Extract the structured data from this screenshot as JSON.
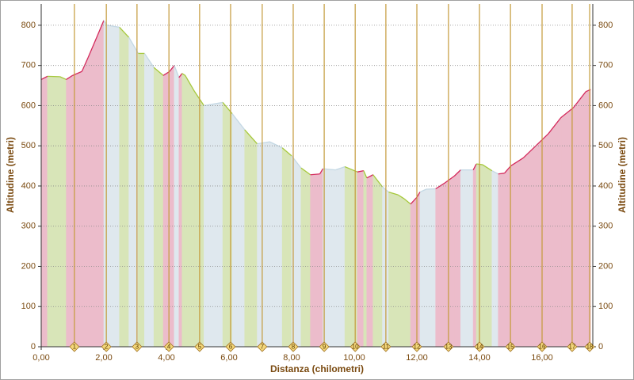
{
  "chart_data": {
    "type": "area",
    "x_label": "Distanza (chilometri)",
    "y_label": "Altitudine (metri)",
    "y2_label": "Altitudine (metri)",
    "xlim": [
      0,
      17.62
    ],
    "ylim": [
      0,
      853
    ],
    "xticks": [
      {
        "value": 0,
        "label": "0,00"
      },
      {
        "value": 2,
        "label": "2,00"
      },
      {
        "value": 4,
        "label": "4,00"
      },
      {
        "value": 6,
        "label": "6,00"
      },
      {
        "value": 8,
        "label": "8,00"
      },
      {
        "value": 10,
        "label": "10,00"
      },
      {
        "value": 12,
        "label": "12,00"
      },
      {
        "value": 14,
        "label": "14,00"
      },
      {
        "value": 16,
        "label": "16,00"
      }
    ],
    "yticks": [
      0,
      100,
      200,
      300,
      400,
      500,
      600,
      700,
      800
    ],
    "grid": true,
    "x": [
      0,
      0.2,
      0.6,
      0.8,
      1.0,
      1.3,
      1.5,
      1.8,
      2.0,
      2.1,
      2.5,
      2.8,
      3.1,
      3.3,
      3.6,
      3.9,
      4.1,
      4.25,
      4.4,
      4.5,
      4.6,
      4.9,
      5.2,
      5.8,
      6.1,
      6.5,
      6.9,
      7.3,
      7.7,
      8.0,
      8.3,
      8.6,
      8.9,
      9.0,
      9.4,
      9.7,
      10.1,
      10.3,
      10.4,
      10.6,
      10.9,
      11.1,
      11.4,
      11.6,
      11.8,
      12.0,
      12.1,
      12.3,
      12.6,
      12.9,
      13.2,
      13.4,
      13.8,
      13.9,
      14.1,
      14.4,
      14.6,
      14.8,
      15.0,
      15.4,
      15.8,
      16.2,
      16.6,
      17.0,
      17.2,
      17.4,
      17.55
    ],
    "values": [
      665,
      673,
      672,
      665,
      675,
      685,
      720,
      775,
      812,
      800,
      795,
      770,
      730,
      730,
      695,
      675,
      685,
      700,
      670,
      680,
      675,
      635,
      600,
      608,
      580,
      540,
      505,
      510,
      495,
      475,
      445,
      428,
      430,
      443,
      440,
      448,
      435,
      438,
      420,
      428,
      398,
      385,
      378,
      368,
      355,
      372,
      385,
      392,
      393,
      408,
      425,
      440,
      440,
      455,
      453,
      438,
      430,
      432,
      450,
      470,
      500,
      530,
      570,
      595,
      615,
      635,
      640
    ],
    "palette": [
      {
        "fill": "#ecbccb",
        "line": "#d42a5c"
      },
      {
        "fill": "#dfe8ee",
        "line": "#c4d8e4"
      },
      {
        "fill": "#d8e5b8",
        "line": "#a6c83c"
      }
    ],
    "interval_style": [
      0,
      2,
      2,
      0,
      0,
      0,
      0,
      0,
      1,
      1,
      2,
      1,
      2,
      1,
      2,
      0,
      0,
      1,
      0,
      2,
      2,
      2,
      1,
      2,
      1,
      2,
      1,
      1,
      2,
      1,
      2,
      0,
      0,
      1,
      1,
      2,
      0,
      2,
      0,
      2,
      1,
      2,
      2,
      2,
      0,
      0,
      1,
      1,
      0,
      0,
      0,
      1,
      0,
      2,
      2,
      1,
      0,
      0,
      0,
      0,
      0,
      0,
      0,
      0,
      0,
      0
    ],
    "marker_color": "#c49a3a",
    "km_markers": [
      {
        "value": 1.06,
        "label": "1"
      },
      {
        "value": 2.08,
        "label": "2"
      },
      {
        "value": 3.06,
        "label": "3"
      },
      {
        "value": 4.08,
        "label": "4"
      },
      {
        "value": 5.06,
        "label": "5"
      },
      {
        "value": 6.05,
        "label": "6"
      },
      {
        "value": 7.06,
        "label": "7"
      },
      {
        "value": 8.05,
        "label": "8"
      },
      {
        "value": 9.04,
        "label": "9"
      },
      {
        "value": 10.03,
        "label": "10"
      },
      {
        "value": 11.01,
        "label": "11"
      },
      {
        "value": 12.0,
        "label": "12"
      },
      {
        "value": 13.01,
        "label": "13"
      },
      {
        "value": 14.0,
        "label": "14"
      },
      {
        "value": 14.99,
        "label": "15"
      },
      {
        "value": 16.0,
        "label": "16"
      },
      {
        "value": 16.96,
        "label": "17"
      },
      {
        "value": 17.52,
        "label": "18"
      }
    ]
  }
}
